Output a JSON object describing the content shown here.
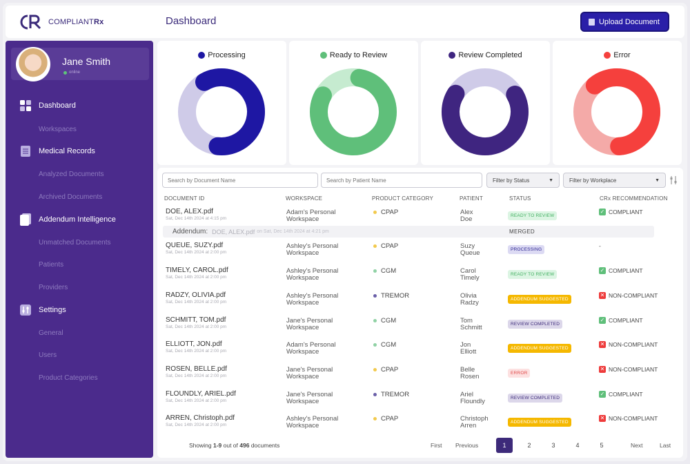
{
  "brand": {
    "name_main": "COMPLIANT",
    "name_suffix": "Rx"
  },
  "header": {
    "title": "Dashboard",
    "upload_label": "Upload Document"
  },
  "user": {
    "name": "Jane Smith",
    "status": "online"
  },
  "nav": [
    {
      "label": "Dashboard",
      "type": "main",
      "icon": "grid-icon"
    },
    {
      "label": "Workspaces",
      "type": "sub"
    },
    {
      "label": "Medical Records",
      "type": "main",
      "icon": "document-list-icon"
    },
    {
      "label": "Analyzed Documents",
      "type": "sub"
    },
    {
      "label": "Archived Documents",
      "type": "sub"
    },
    {
      "label": "Addendum Intelligence",
      "type": "main",
      "icon": "pages-icon"
    },
    {
      "label": "Unmatched Documents",
      "type": "sub"
    },
    {
      "label": "Patients",
      "type": "sub"
    },
    {
      "label": "Providers",
      "type": "sub"
    },
    {
      "label": "Settings",
      "type": "main",
      "icon": "sliders-icon"
    },
    {
      "label": "General",
      "type": "sub"
    },
    {
      "label": "Users",
      "type": "sub"
    },
    {
      "label": "Product Categories",
      "type": "sub"
    }
  ],
  "status_cards": [
    {
      "label": "Processing",
      "color": "#1e17a3",
      "track": "#cfcbe8",
      "fraction": 0.6,
      "start_deg": -30
    },
    {
      "label": "Ready to Review",
      "color": "#5fbf7a",
      "track": "#c6ebd0",
      "fraction": 0.8,
      "start_deg": 10
    },
    {
      "label": "Review Completed",
      "color": "#3f2580",
      "track": "#cfcbe8",
      "fraction": 0.67,
      "start_deg": 60
    },
    {
      "label": "Error",
      "color": "#f5403d",
      "track": "#f4aaa8",
      "fraction": 0.6,
      "start_deg": -40
    }
  ],
  "search": {
    "doc_placeholder": "Search by Document Name",
    "patient_placeholder": "Search by Patient Name"
  },
  "filters": {
    "status": "Filter by Status",
    "workplace": "Filter by Workplace"
  },
  "columns": [
    "DOCUMENT ID",
    "WORKSPACE",
    "PRODUCT CATEGORY",
    "PATIENT",
    "STATUS",
    "CRx RECOMMENDATION"
  ],
  "rows": [
    {
      "doc": "DOE, ALEX.pdf",
      "date": "Sat, Dec 14th 2024 at 4:15 pm",
      "ws1": "Adam's Personal",
      "ws2": "Workspace",
      "cat": "CPAP",
      "cat_color": "#f2c94c",
      "p1": "Alex",
      "p2": "Doe",
      "status": "READY TO REVIEW",
      "status_kind": "ready",
      "rec": "COMPLIANT",
      "rec_kind": "ok"
    },
    {
      "doc": "QUEUE, SUZY.pdf",
      "date": "Sat, Dec 14th 2024 at 2:00 pm",
      "ws1": "Ashley's Personal",
      "ws2": "Workspace",
      "cat": "CPAP",
      "cat_color": "#f2c94c",
      "p1": "Suzy",
      "p2": "Queue",
      "status": "PROCESSING",
      "status_kind": "processing",
      "rec": "-",
      "rec_kind": "none"
    },
    {
      "doc": "TIMELY, CAROL.pdf",
      "date": "Sat, Dec 14th 2024 at 2:00 pm",
      "ws1": "Ashley's Personal",
      "ws2": "Workspace",
      "cat": "CGM",
      "cat_color": "#8fd1a4",
      "p1": "Carol",
      "p2": "Timely",
      "status": "READY TO REVIEW",
      "status_kind": "ready",
      "rec": "COMPLIANT",
      "rec_kind": "ok"
    },
    {
      "doc": "RADZY, OLIVIA.pdf",
      "date": "Sat, Dec 14th 2024 at 2:00 pm",
      "ws1": "Ashley's Personal",
      "ws2": "Workspace",
      "cat": "TREMOR",
      "cat_color": "#6a5fa8",
      "p1": "Olivia",
      "p2": "Radzy",
      "status": "ADDENDUM SUGGESTED",
      "status_kind": "addendum",
      "rec": "NON-COMPLIANT",
      "rec_kind": "bad"
    },
    {
      "doc": "SCHMITT, TOM.pdf",
      "date": "Sat, Dec 14th 2024 at 2:00 pm",
      "ws1": "Jane's Personal",
      "ws2": "Workspace",
      "cat": "CGM",
      "cat_color": "#8fd1a4",
      "p1": "Tom",
      "p2": "Schmitt",
      "status": "REVIEW COMPLETED",
      "status_kind": "completed",
      "rec": "COMPLIANT",
      "rec_kind": "ok"
    },
    {
      "doc": "ELLIOTT, JON.pdf",
      "date": "Sat, Dec 14th 2024 at 2:00 pm",
      "ws1": "Adam's Personal",
      "ws2": "Workspace",
      "cat": "CGM",
      "cat_color": "#8fd1a4",
      "p1": "Jon",
      "p2": "Elliott",
      "status": "ADDENDUM SUGGESTED",
      "status_kind": "addendum",
      "rec": "NON-COMPLIANT",
      "rec_kind": "bad"
    },
    {
      "doc": "ROSEN, BELLE.pdf",
      "date": "Sat, Dec 14th 2024 at 2:00 pm",
      "ws1": "Jane's Personal",
      "ws2": "Workspace",
      "cat": "CPAP",
      "cat_color": "#f2c94c",
      "p1": "Belle",
      "p2": "Rosen",
      "status": "ERROR",
      "status_kind": "error",
      "rec": "NON-COMPLIANT",
      "rec_kind": "bad"
    },
    {
      "doc": "FLOUNDLY, ARIEL.pdf",
      "date": "Sat, Dec 14th 2024 at 2:00 pm",
      "ws1": "Jane's Personal",
      "ws2": "Workspace",
      "cat": "TREMOR",
      "cat_color": "#6a5fa8",
      "p1": "Ariel",
      "p2": "Floundly",
      "status": "REVIEW COMPLETED",
      "status_kind": "completed",
      "rec": "COMPLIANT",
      "rec_kind": "ok"
    },
    {
      "doc": "ARREN, Christoph.pdf",
      "date": "Sat, Dec 14th 2024 at 2:00 pm",
      "ws1": "Ashley's Personal",
      "ws2": "Workspace",
      "cat": "CPAP",
      "cat_color": "#f2c94c",
      "p1": "Christoph",
      "p2": "Arren",
      "status": "ADDENDUM SUGGESTED",
      "status_kind": "addendum",
      "rec": "NON-COMPLIANT",
      "rec_kind": "bad"
    }
  ],
  "addendum": {
    "label": "Addendum:",
    "file": "DOE, ALEX.pdf",
    "date": "on Sat, Dec 14th 2024 at 4:21 pm",
    "status": "MERGED"
  },
  "pagination": {
    "prefix": "Showing ",
    "range": "1-9",
    "mid": " out of ",
    "total": "496",
    "suffix": " documents",
    "first": "First",
    "previous": "Previous",
    "pages": [
      "1",
      "2",
      "3",
      "4",
      "5"
    ],
    "current": "1",
    "next": "Next",
    "last": "Last"
  },
  "badge_colors": {
    "ready": {
      "bg": "#dcf5e3",
      "fg": "#3fae5f"
    },
    "processing": {
      "bg": "#dcdaf3",
      "fg": "#2a2390"
    },
    "addendum": {
      "bg": "#f5b800",
      "fg": "#ffffff"
    },
    "completed": {
      "bg": "#dcd7ea",
      "fg": "#3d2a7a"
    },
    "error": {
      "bg": "#fde1e1",
      "fg": "#e04b4b"
    }
  }
}
